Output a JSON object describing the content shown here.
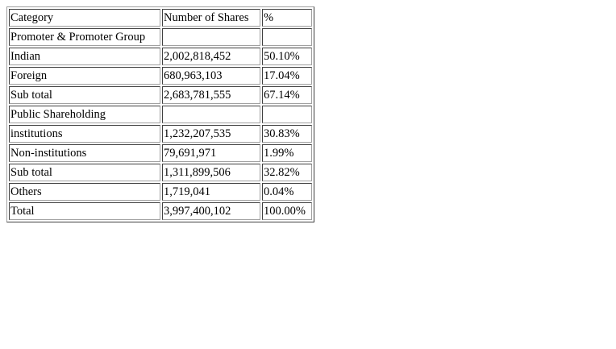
{
  "table": {
    "headers": {
      "category": "Category",
      "shares": "Number of Shares",
      "percent": "%"
    },
    "rows": [
      {
        "category": "Promoter & Promoter Group",
        "shares": "",
        "percent": ""
      },
      {
        "category": "Indian",
        "shares": "2,002,818,452",
        "percent": "50.10%"
      },
      {
        "category": "Foreign",
        "shares": "680,963,103",
        "percent": "17.04%"
      },
      {
        "category": "Sub total",
        "shares": "2,683,781,555",
        "percent": "67.14%"
      },
      {
        "category": "Public Shareholding",
        "shares": "",
        "percent": ""
      },
      {
        "category": "institutions",
        "shares": "1,232,207,535",
        "percent": "30.83%"
      },
      {
        "category": "Non-institutions",
        "shares": "79,691,971",
        "percent": "1.99%"
      },
      {
        "category": "Sub total",
        "shares": "1,311,899,506",
        "percent": "32.82%"
      },
      {
        "category": "Others",
        "shares": "1,719,041",
        "percent": "0.04%"
      },
      {
        "category": "Total",
        "shares": "3,997,400,102",
        "percent": "100.00%"
      }
    ]
  }
}
